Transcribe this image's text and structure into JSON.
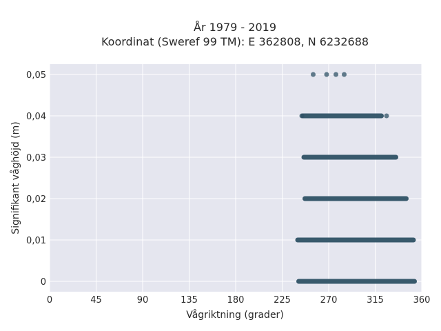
{
  "chart_data": {
    "type": "scatter",
    "title_line1": "År 1979 - 2019",
    "title_line2": "Koordinat (Sweref 99 TM): E 362808, N 6232688",
    "xlabel": "Vågriktning (grader)",
    "ylabel": "Signifikant våghöjd (m)",
    "xlim": [
      0,
      360
    ],
    "ylim": [
      -0.0025,
      0.0525
    ],
    "xticks": [
      0,
      45,
      90,
      135,
      180,
      225,
      270,
      315,
      360
    ],
    "xtick_labels": [
      "0",
      "45",
      "90",
      "135",
      "180",
      "225",
      "270",
      "315",
      "360"
    ],
    "yticks": [
      0,
      0.01,
      0.02,
      0.03,
      0.04,
      0.05
    ],
    "ytick_labels": [
      "0",
      "0,01",
      "0,02",
      "0,03",
      "0,04",
      "0,05"
    ],
    "grid": true,
    "colors": {
      "background": "#e5e6ef",
      "grid": "#ffffff",
      "marker": "#2f5266"
    },
    "bands": [
      {
        "y": 0.0,
        "x_min": 241,
        "x_max": 353
      },
      {
        "y": 0.01,
        "x_min": 240,
        "x_max": 352
      },
      {
        "y": 0.02,
        "x_min": 247,
        "x_max": 345
      },
      {
        "y": 0.03,
        "x_min": 246,
        "x_max": 335
      },
      {
        "y": 0.04,
        "x_min": 245,
        "x_max": 321
      }
    ],
    "points": [
      {
        "x": 255,
        "y": 0.05
      },
      {
        "x": 268,
        "y": 0.05
      },
      {
        "x": 277,
        "y": 0.05
      },
      {
        "x": 285,
        "y": 0.05
      },
      {
        "x": 244,
        "y": 0.04
      },
      {
        "x": 326,
        "y": 0.04
      }
    ]
  }
}
